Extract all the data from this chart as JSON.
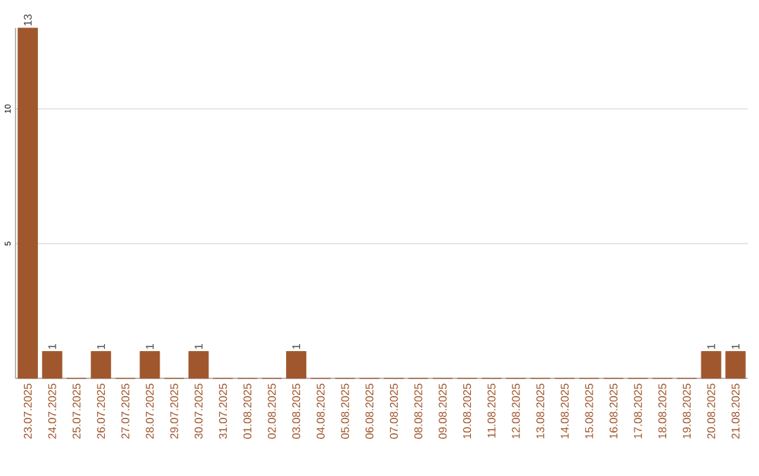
{
  "chart_data": {
    "type": "bar",
    "categories": [
      "23.07.2025",
      "24.07.2025",
      "25.07.2025",
      "26.07.2025",
      "27.07.2025",
      "28.07.2025",
      "29.07.2025",
      "30.07.2025",
      "31.07.2025",
      "01.08.2025",
      "02.08.2025",
      "03.08.2025",
      "04.08.2025",
      "05.08.2025",
      "06.08.2025",
      "07.08.2025",
      "08.08.2025",
      "09.08.2025",
      "10.08.2025",
      "11.08.2025",
      "12.08.2025",
      "13.08.2025",
      "14.08.2025",
      "15.08.2025",
      "16.08.2025",
      "17.08.2025",
      "18.08.2025",
      "19.08.2025",
      "20.08.2025",
      "21.08.2025"
    ],
    "values": [
      13,
      1,
      0,
      1,
      0,
      1,
      0,
      1,
      0,
      0,
      0,
      1,
      0,
      0,
      0,
      0,
      0,
      0,
      0,
      0,
      0,
      0,
      0,
      0,
      0,
      0,
      0,
      0,
      1,
      1
    ],
    "value_labels": [
      "13",
      "1",
      null,
      "1",
      null,
      "1",
      null,
      "1",
      null,
      null,
      null,
      "1",
      null,
      null,
      null,
      null,
      null,
      null,
      null,
      null,
      null,
      null,
      null,
      null,
      null,
      null,
      null,
      null,
      "1",
      "1"
    ],
    "color": "#a0572d",
    "ylim": [
      0,
      13
    ],
    "yticks": [
      5,
      10
    ],
    "grid": "y"
  }
}
